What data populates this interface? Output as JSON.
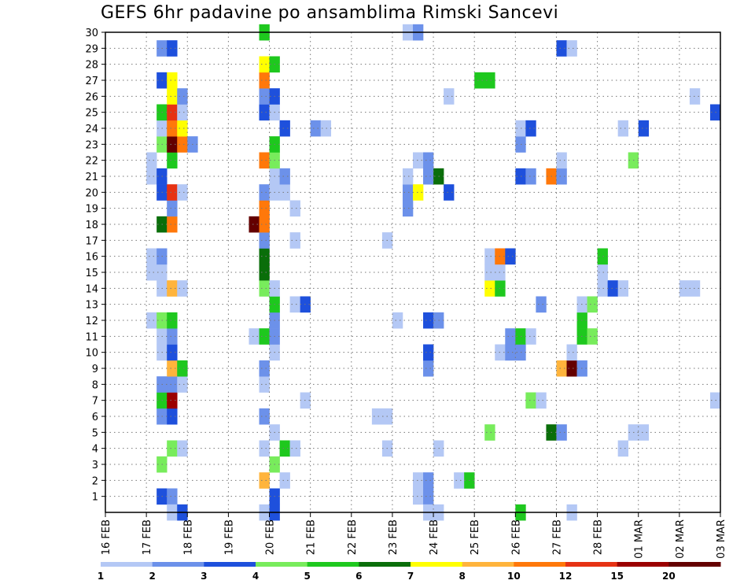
{
  "chart_data": {
    "type": "heatmap",
    "title": "GEFS 6hr padavine po ansamblima Rimski Sancevi",
    "xlabel": "",
    "ylabel": "",
    "x_tick_labels": [
      "16 FEB",
      "17 FEB",
      "18 FEB",
      "19 FEB",
      "20 FEB",
      "21 FEB",
      "22 FEB",
      "23 FEB",
      "24 FEB",
      "25 FEB",
      "26 FEB",
      "27 FEB",
      "28 FEB",
      "01 MAR",
      "02 MAR",
      "03 MAR"
    ],
    "y_tick_labels": [
      "1",
      "2",
      "3",
      "4",
      "5",
      "6",
      "7",
      "8",
      "9",
      "10",
      "11",
      "12",
      "13",
      "14",
      "15",
      "16",
      "17",
      "18",
      "19",
      "20",
      "21",
      "22",
      "23",
      "24",
      "25",
      "26",
      "27",
      "28",
      "29",
      "30"
    ],
    "x_range_steps": [
      0,
      60
    ],
    "y_range_members": [
      0,
      30
    ],
    "steps_per_day": 4,
    "grid": true,
    "colorbar": {
      "labels": [
        "1",
        "2",
        "3",
        "4",
        "5",
        "6",
        "7",
        "8",
        "10",
        "12",
        "15",
        "20"
      ],
      "colors": [
        "#b4c8f5",
        "#6c91ea",
        "#1e50dc",
        "#78ec5c",
        "#1ec81e",
        "#0a6e0a",
        "#ffff00",
        "#ffb43c",
        "#ff780a",
        "#e63214",
        "#9b0000",
        "#640000"
      ]
    },
    "cells": [
      {
        "m": 1,
        "s": 5,
        "c": "#1e50dc"
      },
      {
        "m": 1,
        "s": 6,
        "c": "#6c91ea"
      },
      {
        "m": 1,
        "s": 16,
        "c": "#1e50dc"
      },
      {
        "m": 1,
        "s": 30,
        "c": "#b4c8f5"
      },
      {
        "m": 1,
        "s": 31,
        "c": "#6c91ea"
      },
      {
        "m": 2,
        "s": 15,
        "c": "#ffb43c"
      },
      {
        "m": 2,
        "s": 17,
        "c": "#b4c8f5"
      },
      {
        "m": 2,
        "s": 30,
        "c": "#b4c8f5"
      },
      {
        "m": 2,
        "s": 31,
        "c": "#6c91ea"
      },
      {
        "m": 2,
        "s": 34,
        "c": "#b4c8f5"
      },
      {
        "m": 2,
        "s": 35,
        "c": "#1ec81e"
      },
      {
        "m": 3,
        "s": 5,
        "c": "#78ec5c"
      },
      {
        "m": 3,
        "s": 16,
        "c": "#78ec5c"
      },
      {
        "m": 4,
        "s": 6,
        "c": "#78ec5c"
      },
      {
        "m": 4,
        "s": 7,
        "c": "#b4c8f5"
      },
      {
        "m": 4,
        "s": 15,
        "c": "#b4c8f5"
      },
      {
        "m": 4,
        "s": 17,
        "c": "#1ec81e"
      },
      {
        "m": 4,
        "s": 18,
        "c": "#b4c8f5"
      },
      {
        "m": 4,
        "s": 27,
        "c": "#b4c8f5"
      },
      {
        "m": 4,
        "s": 32,
        "c": "#b4c8f5"
      },
      {
        "m": 4,
        "s": 50,
        "c": "#b4c8f5"
      },
      {
        "m": 5,
        "s": 16,
        "c": "#b4c8f5"
      },
      {
        "m": 5,
        "s": 37,
        "c": "#78ec5c"
      },
      {
        "m": 5,
        "s": 43,
        "c": "#0a6e0a"
      },
      {
        "m": 5,
        "s": 44,
        "c": "#6c91ea"
      },
      {
        "m": 5,
        "s": 51,
        "c": "#b4c8f5"
      },
      {
        "m": 5,
        "s": 52,
        "c": "#b4c8f5"
      },
      {
        "m": 6,
        "s": 5,
        "c": "#6c91ea"
      },
      {
        "m": 6,
        "s": 6,
        "c": "#1e50dc"
      },
      {
        "m": 6,
        "s": 15,
        "c": "#6c91ea"
      },
      {
        "m": 6,
        "s": 26,
        "c": "#b4c8f5"
      },
      {
        "m": 6,
        "s": 27,
        "c": "#b4c8f5"
      },
      {
        "m": 7,
        "s": 5,
        "c": "#1ec81e"
      },
      {
        "m": 7,
        "s": 6,
        "c": "#9b0000"
      },
      {
        "m": 7,
        "s": 19,
        "c": "#b4c8f5"
      },
      {
        "m": 7,
        "s": 41,
        "c": "#78ec5c"
      },
      {
        "m": 7,
        "s": 42,
        "c": "#b4c8f5"
      },
      {
        "m": 7,
        "s": 59,
        "c": "#b4c8f5"
      },
      {
        "m": 8,
        "s": 5,
        "c": "#6c91ea"
      },
      {
        "m": 8,
        "s": 6,
        "c": "#6c91ea"
      },
      {
        "m": 8,
        "s": 7,
        "c": "#b4c8f5"
      },
      {
        "m": 8,
        "s": 15,
        "c": "#b4c8f5"
      },
      {
        "m": 9,
        "s": 6,
        "c": "#ffb43c"
      },
      {
        "m": 9,
        "s": 7,
        "c": "#1ec81e"
      },
      {
        "m": 9,
        "s": 15,
        "c": "#6c91ea"
      },
      {
        "m": 9,
        "s": 31,
        "c": "#6c91ea"
      },
      {
        "m": 9,
        "s": 44,
        "c": "#ffb43c"
      },
      {
        "m": 9,
        "s": 45,
        "c": "#640000"
      },
      {
        "m": 9,
        "s": 46,
        "c": "#6c91ea"
      },
      {
        "m": 10,
        "s": 5,
        "c": "#b4c8f5"
      },
      {
        "m": 10,
        "s": 6,
        "c": "#1e50dc"
      },
      {
        "m": 10,
        "s": 16,
        "c": "#b4c8f5"
      },
      {
        "m": 10,
        "s": 31,
        "c": "#1e50dc"
      },
      {
        "m": 10,
        "s": 38,
        "c": "#b4c8f5"
      },
      {
        "m": 10,
        "s": 39,
        "c": "#6c91ea"
      },
      {
        "m": 10,
        "s": 40,
        "c": "#6c91ea"
      },
      {
        "m": 10,
        "s": 45,
        "c": "#b4c8f5"
      },
      {
        "m": 11,
        "s": 5,
        "c": "#b4c8f5"
      },
      {
        "m": 11,
        "s": 6,
        "c": "#6c91ea"
      },
      {
        "m": 11,
        "s": 14,
        "c": "#b4c8f5"
      },
      {
        "m": 11,
        "s": 15,
        "c": "#1ec81e"
      },
      {
        "m": 11,
        "s": 16,
        "c": "#6c91ea"
      },
      {
        "m": 11,
        "s": 39,
        "c": "#6c91ea"
      },
      {
        "m": 11,
        "s": 40,
        "c": "#1ec81e"
      },
      {
        "m": 11,
        "s": 41,
        "c": "#b4c8f5"
      },
      {
        "m": 11,
        "s": 46,
        "c": "#1ec81e"
      },
      {
        "m": 11,
        "s": 47,
        "c": "#78ec5c"
      },
      {
        "m": 12,
        "s": 4,
        "c": "#b4c8f5"
      },
      {
        "m": 12,
        "s": 5,
        "c": "#78ec5c"
      },
      {
        "m": 12,
        "s": 6,
        "c": "#1ec81e"
      },
      {
        "m": 12,
        "s": 16,
        "c": "#6c91ea"
      },
      {
        "m": 12,
        "s": 28,
        "c": "#b4c8f5"
      },
      {
        "m": 12,
        "s": 31,
        "c": "#1e50dc"
      },
      {
        "m": 12,
        "s": 32,
        "c": "#6c91ea"
      },
      {
        "m": 12,
        "s": 46,
        "c": "#1ec81e"
      },
      {
        "m": 13,
        "s": 16,
        "c": "#1ec81e"
      },
      {
        "m": 13,
        "s": 18,
        "c": "#b4c8f5"
      },
      {
        "m": 13,
        "s": 19,
        "c": "#1e50dc"
      },
      {
        "m": 13,
        "s": 42,
        "c": "#6c91ea"
      },
      {
        "m": 13,
        "s": 46,
        "c": "#b4c8f5"
      },
      {
        "m": 13,
        "s": 47,
        "c": "#78ec5c"
      },
      {
        "m": 14,
        "s": 5,
        "c": "#b4c8f5"
      },
      {
        "m": 14,
        "s": 6,
        "c": "#ffb43c"
      },
      {
        "m": 14,
        "s": 7,
        "c": "#b4c8f5"
      },
      {
        "m": 14,
        "s": 15,
        "c": "#78ec5c"
      },
      {
        "m": 14,
        "s": 16,
        "c": "#b4c8f5"
      },
      {
        "m": 14,
        "s": 37,
        "c": "#ffff00"
      },
      {
        "m": 14,
        "s": 38,
        "c": "#1ec81e"
      },
      {
        "m": 14,
        "s": 48,
        "c": "#b4c8f5"
      },
      {
        "m": 14,
        "s": 49,
        "c": "#1e50dc"
      },
      {
        "m": 14,
        "s": 50,
        "c": "#b4c8f5"
      },
      {
        "m": 14,
        "s": 56,
        "c": "#b4c8f5"
      },
      {
        "m": 14,
        "s": 57,
        "c": "#b4c8f5"
      },
      {
        "m": 15,
        "s": 4,
        "c": "#b4c8f5"
      },
      {
        "m": 15,
        "s": 5,
        "c": "#b4c8f5"
      },
      {
        "m": 15,
        "s": 15,
        "c": "#0a6e0a"
      },
      {
        "m": 15,
        "s": 37,
        "c": "#b4c8f5"
      },
      {
        "m": 15,
        "s": 38,
        "c": "#b4c8f5"
      },
      {
        "m": 15,
        "s": 48,
        "c": "#b4c8f5"
      },
      {
        "m": 16,
        "s": 4,
        "c": "#b4c8f5"
      },
      {
        "m": 16,
        "s": 5,
        "c": "#6c91ea"
      },
      {
        "m": 16,
        "s": 15,
        "c": "#0a6e0a"
      },
      {
        "m": 16,
        "s": 37,
        "c": "#b4c8f5"
      },
      {
        "m": 16,
        "s": 38,
        "c": "#ff780a"
      },
      {
        "m": 16,
        "s": 39,
        "c": "#1e50dc"
      },
      {
        "m": 16,
        "s": 48,
        "c": "#1ec81e"
      },
      {
        "m": 17,
        "s": 15,
        "c": "#6c91ea"
      },
      {
        "m": 17,
        "s": 18,
        "c": "#b4c8f5"
      },
      {
        "m": 17,
        "s": 27,
        "c": "#b4c8f5"
      },
      {
        "m": 18,
        "s": 5,
        "c": "#0a6e0a"
      },
      {
        "m": 18,
        "s": 6,
        "c": "#ff780a"
      },
      {
        "m": 18,
        "s": 14,
        "c": "#640000"
      },
      {
        "m": 18,
        "s": 15,
        "c": "#ff780a"
      },
      {
        "m": 19,
        "s": 6,
        "c": "#6c91ea"
      },
      {
        "m": 19,
        "s": 15,
        "c": "#ff780a"
      },
      {
        "m": 19,
        "s": 18,
        "c": "#b4c8f5"
      },
      {
        "m": 19,
        "s": 29,
        "c": "#6c91ea"
      },
      {
        "m": 20,
        "s": 5,
        "c": "#1e50dc"
      },
      {
        "m": 20,
        "s": 6,
        "c": "#e63214"
      },
      {
        "m": 20,
        "s": 7,
        "c": "#b4c8f5"
      },
      {
        "m": 20,
        "s": 15,
        "c": "#6c91ea"
      },
      {
        "m": 20,
        "s": 16,
        "c": "#b4c8f5"
      },
      {
        "m": 20,
        "s": 17,
        "c": "#b4c8f5"
      },
      {
        "m": 20,
        "s": 29,
        "c": "#6c91ea"
      },
      {
        "m": 20,
        "s": 30,
        "c": "#ffff00"
      },
      {
        "m": 20,
        "s": 33,
        "c": "#1e50dc"
      },
      {
        "m": 21,
        "s": 4,
        "c": "#b4c8f5"
      },
      {
        "m": 21,
        "s": 5,
        "c": "#1e50dc"
      },
      {
        "m": 21,
        "s": 16,
        "c": "#b4c8f5"
      },
      {
        "m": 21,
        "s": 17,
        "c": "#6c91ea"
      },
      {
        "m": 21,
        "s": 29,
        "c": "#b4c8f5"
      },
      {
        "m": 21,
        "s": 31,
        "c": "#6c91ea"
      },
      {
        "m": 21,
        "s": 32,
        "c": "#0a6e0a"
      },
      {
        "m": 21,
        "s": 40,
        "c": "#1e50dc"
      },
      {
        "m": 21,
        "s": 41,
        "c": "#6c91ea"
      },
      {
        "m": 21,
        "s": 43,
        "c": "#ff780a"
      },
      {
        "m": 21,
        "s": 44,
        "c": "#6c91ea"
      },
      {
        "m": 22,
        "s": 4,
        "c": "#b4c8f5"
      },
      {
        "m": 22,
        "s": 6,
        "c": "#1ec81e"
      },
      {
        "m": 22,
        "s": 15,
        "c": "#ff780a"
      },
      {
        "m": 22,
        "s": 16,
        "c": "#78ec5c"
      },
      {
        "m": 22,
        "s": 30,
        "c": "#b4c8f5"
      },
      {
        "m": 22,
        "s": 31,
        "c": "#6c91ea"
      },
      {
        "m": 22,
        "s": 44,
        "c": "#b4c8f5"
      },
      {
        "m": 22,
        "s": 51,
        "c": "#78ec5c"
      },
      {
        "m": 23,
        "s": 5,
        "c": "#78ec5c"
      },
      {
        "m": 23,
        "s": 6,
        "c": "#640000"
      },
      {
        "m": 23,
        "s": 7,
        "c": "#ff780a"
      },
      {
        "m": 23,
        "s": 8,
        "c": "#6c91ea"
      },
      {
        "m": 23,
        "s": 16,
        "c": "#1ec81e"
      },
      {
        "m": 23,
        "s": 40,
        "c": "#6c91ea"
      },
      {
        "m": 24,
        "s": 5,
        "c": "#b4c8f5"
      },
      {
        "m": 24,
        "s": 6,
        "c": "#ff780a"
      },
      {
        "m": 24,
        "s": 7,
        "c": "#ffff00"
      },
      {
        "m": 24,
        "s": 17,
        "c": "#1e50dc"
      },
      {
        "m": 24,
        "s": 20,
        "c": "#6c91ea"
      },
      {
        "m": 24,
        "s": 21,
        "c": "#b4c8f5"
      },
      {
        "m": 24,
        "s": 40,
        "c": "#b4c8f5"
      },
      {
        "m": 24,
        "s": 41,
        "c": "#1e50dc"
      },
      {
        "m": 24,
        "s": 50,
        "c": "#b4c8f5"
      },
      {
        "m": 24,
        "s": 52,
        "c": "#1e50dc"
      },
      {
        "m": 25,
        "s": 5,
        "c": "#1ec81e"
      },
      {
        "m": 25,
        "s": 6,
        "c": "#e63214"
      },
      {
        "m": 25,
        "s": 7,
        "c": "#b4c8f5"
      },
      {
        "m": 25,
        "s": 15,
        "c": "#1e50dc"
      },
      {
        "m": 25,
        "s": 16,
        "c": "#b4c8f5"
      },
      {
        "m": 25,
        "s": 59,
        "c": "#1e50dc"
      },
      {
        "m": 26,
        "s": 6,
        "c": "#ffff00"
      },
      {
        "m": 26,
        "s": 7,
        "c": "#6c91ea"
      },
      {
        "m": 26,
        "s": 15,
        "c": "#6c91ea"
      },
      {
        "m": 26,
        "s": 16,
        "c": "#1e50dc"
      },
      {
        "m": 26,
        "s": 33,
        "c": "#b4c8f5"
      },
      {
        "m": 26,
        "s": 57,
        "c": "#b4c8f5"
      },
      {
        "m": 27,
        "s": 5,
        "c": "#1e50dc"
      },
      {
        "m": 27,
        "s": 6,
        "c": "#ffff00"
      },
      {
        "m": 27,
        "s": 15,
        "c": "#ff780a"
      },
      {
        "m": 27,
        "s": 36,
        "c": "#1ec81e"
      },
      {
        "m": 27,
        "s": 37,
        "c": "#1ec81e"
      },
      {
        "m": 28,
        "s": 15,
        "c": "#ffff00"
      },
      {
        "m": 28,
        "s": 16,
        "c": "#1ec81e"
      },
      {
        "m": 29,
        "s": 5,
        "c": "#6c91ea"
      },
      {
        "m": 29,
        "s": 6,
        "c": "#1e50dc"
      },
      {
        "m": 29,
        "s": 44,
        "c": "#1e50dc"
      },
      {
        "m": 29,
        "s": 45,
        "c": "#b4c8f5"
      },
      {
        "m": 30,
        "s": 15,
        "c": "#1ec81e"
      },
      {
        "m": 30,
        "s": 29,
        "c": "#b4c8f5"
      },
      {
        "m": 30,
        "s": 30,
        "c": "#6c91ea"
      },
      {
        "m": 0,
        "s": 6,
        "c": "#b4c8f5"
      },
      {
        "m": 0,
        "s": 7,
        "c": "#1e50dc"
      },
      {
        "m": 0,
        "s": 15,
        "c": "#b4c8f5"
      },
      {
        "m": 0,
        "s": 16,
        "c": "#1e50dc"
      },
      {
        "m": 0,
        "s": 31,
        "c": "#b4c8f5"
      },
      {
        "m": 0,
        "s": 32,
        "c": "#b4c8f5"
      },
      {
        "m": 0,
        "s": 40,
        "c": "#1ec81e"
      },
      {
        "m": 0,
        "s": 45,
        "c": "#b4c8f5"
      }
    ]
  }
}
